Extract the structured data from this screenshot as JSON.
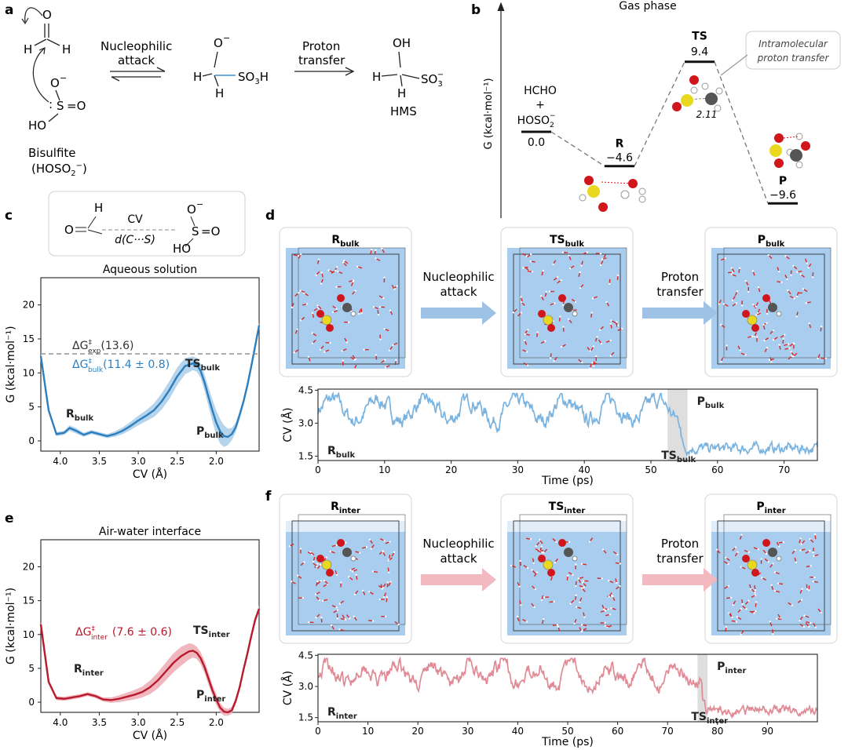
{
  "panels": {
    "a": "a",
    "b": "b",
    "c": "c",
    "d": "d",
    "e": "e",
    "f": "f"
  },
  "panel_a": {
    "step1": "Nucleophilic",
    "step1b": "attack",
    "step2": "Proton",
    "step2b": "transfer",
    "formaldehyde_H1": "H",
    "formaldehyde_H2": "H",
    "formaldehyde_O": "O",
    "bisulfite_label": "Bisulfite",
    "bisulfite_formula": "(HOSO",
    "bisulfite_formula_sub": "2",
    "bisulfite_formula_sup": "−",
    "bisulfite_formula_end": ")",
    "b_O": "O",
    "b_charge": "−",
    "b_S": "S",
    "b_eq": "=O",
    "b_HO": "HO",
    "int_O": "O",
    "int_charge": "−",
    "int_H1": "H",
    "int_H2": "H",
    "int_SO3H": "SO",
    "int_SO3H_sub": "3",
    "int_SO3H_end": "H",
    "hms_OH": "OH",
    "hms_H1": "H",
    "hms_H2": "H",
    "hms_SO3": "SO",
    "hms_SO3_sub": "3",
    "hms_SO3_sup": "−",
    "hms_label": "HMS"
  },
  "panel_b": {
    "title": "Gas phase",
    "ylabel": "G (kcal·mol⁻¹)",
    "states": [
      {
        "name": "HCHO",
        "name2": "+",
        "name3": "HOSO",
        "name3_sub": "2",
        "name3_sup": "−",
        "value": "0.0",
        "y": 0.0
      },
      {
        "name": "R",
        "value": "−4.6",
        "y": -4.6
      },
      {
        "name": "TS",
        "value": "9.4",
        "y": 9.4
      },
      {
        "name": "P",
        "value": "−9.6",
        "y": -9.6
      }
    ],
    "ts_distance": "2.11",
    "annotation": "Intramolecular",
    "annotation2": "proton transfer"
  },
  "panel_c": {
    "scheme_cv": "CV",
    "scheme_d": "d(C···S)",
    "scheme_H": "H",
    "scheme_O": "O",
    "scheme_Om": "O",
    "scheme_m": "−",
    "scheme_S": "S",
    "scheme_eqO": "=O",
    "scheme_HO": "HO"
  },
  "chart_data": [
    {
      "id": "c",
      "type": "line",
      "title": "Aqueous solution",
      "xlabel": "CV (Å)",
      "ylabel": "G (kcal·mol⁻¹)",
      "xlim": [
        4.25,
        1.45
      ],
      "ylim": [
        -1.5,
        24
      ],
      "xticks": [
        "4.0",
        "3.5",
        "3.0",
        "2.5",
        "2.0"
      ],
      "yticks": [
        "0",
        "5",
        "10",
        "15",
        "20"
      ],
      "x": [
        4.25,
        4.15,
        4.05,
        3.95,
        3.88,
        3.8,
        3.7,
        3.6,
        3.5,
        3.4,
        3.3,
        3.2,
        3.1,
        3.0,
        2.9,
        2.8,
        2.7,
        2.6,
        2.5,
        2.4,
        2.3,
        2.25,
        2.2,
        2.15,
        2.1,
        2.05,
        2.0,
        1.95,
        1.9,
        1.85,
        1.8,
        1.75,
        1.7,
        1.65,
        1.6,
        1.55,
        1.5,
        1.45
      ],
      "y": [
        12.5,
        4.5,
        1.0,
        1.2,
        1.9,
        1.5,
        0.9,
        1.3,
        1.0,
        0.7,
        1.0,
        1.5,
        2.2,
        3.0,
        3.7,
        4.5,
        5.8,
        7.5,
        9.5,
        11.0,
        11.4,
        11.2,
        10.3,
        8.6,
        6.5,
        4.5,
        2.7,
        1.4,
        0.7,
        0.6,
        1.0,
        2.0,
        3.8,
        5.8,
        8.2,
        11.0,
        14.0,
        17.0
      ],
      "band": [
        0.5,
        0.3,
        0.3,
        0.3,
        0.4,
        0.4,
        0.3,
        0.3,
        0.3,
        0.3,
        0.4,
        0.5,
        0.6,
        0.7,
        0.8,
        1.0,
        1.2,
        1.3,
        1.3,
        1.2,
        1.0,
        1.0,
        1.0,
        1.2,
        1.4,
        1.6,
        1.8,
        1.8,
        1.6,
        1.2,
        0.9,
        0.7,
        0.6,
        0.5,
        0.5,
        0.5,
        0.5,
        0.5
      ],
      "color": "#2c7fbf",
      "band_color": "#a9cde8",
      "ref_line": 12.8,
      "annotations": {
        "exp": "ΔG",
        "exp_sup": "‡",
        "exp_sub": "exp",
        "exp_val": "(13.6)",
        "bulk": "ΔG",
        "bulk_sup": "‡",
        "bulk_sub": "bulk",
        "bulk_val": "(11.4 ± 0.8)",
        "R": "R",
        "R_sub": "bulk",
        "TS": "TS",
        "TS_sub": "bulk",
        "P": "P",
        "P_sub": "bulk"
      }
    },
    {
      "id": "d_trace",
      "type": "line",
      "xlabel": "Time (ps)",
      "ylabel": "CV (Å)",
      "xlim": [
        0,
        75
      ],
      "ylim": [
        1.3,
        4.55
      ],
      "xticks": [
        "0",
        "10",
        "20",
        "30",
        "40",
        "50",
        "60",
        "70"
      ],
      "yticks": [
        "1.5",
        "3.0",
        "4.5"
      ],
      "color": "#7ab3df",
      "shade": [
        52.5,
        55.5
      ],
      "labels": {
        "R": "R",
        "R_sub": "bulk",
        "P": "P",
        "P_sub": "bulk",
        "TS": "TS",
        "TS_sub": "bulk"
      },
      "seed": 7,
      "transition": 54.5
    },
    {
      "id": "e",
      "type": "line",
      "title": "Air-water interface",
      "xlabel": "CV (Å)",
      "ylabel": "G (kcal·mol⁻¹)",
      "xlim": [
        4.25,
        1.45
      ],
      "ylim": [
        -1.5,
        24
      ],
      "xticks": [
        "4.0",
        "3.5",
        "3.0",
        "2.5",
        "2.0"
      ],
      "yticks": [
        "0",
        "5",
        "10",
        "15",
        "20"
      ],
      "x": [
        4.25,
        4.15,
        4.05,
        3.95,
        3.85,
        3.75,
        3.65,
        3.55,
        3.45,
        3.35,
        3.25,
        3.15,
        3.05,
        2.95,
        2.85,
        2.75,
        2.65,
        2.55,
        2.45,
        2.35,
        2.3,
        2.25,
        2.2,
        2.15,
        2.1,
        2.05,
        2.0,
        1.95,
        1.9,
        1.85,
        1.8,
        1.75,
        1.7,
        1.65,
        1.6,
        1.55,
        1.5,
        1.45
      ],
      "y": [
        11.5,
        3.0,
        0.6,
        0.5,
        0.7,
        0.9,
        1.2,
        0.9,
        0.4,
        0.3,
        0.5,
        0.8,
        1.1,
        1.5,
        2.2,
        3.2,
        4.5,
        5.8,
        6.8,
        7.5,
        7.6,
        7.3,
        6.5,
        5.2,
        3.5,
        1.8,
        0.4,
        -0.8,
        -1.4,
        -1.5,
        -1.2,
        0.2,
        2.2,
        4.8,
        7.2,
        9.8,
        12.2,
        13.8
      ],
      "band": [
        0.4,
        0.3,
        0.3,
        0.3,
        0.3,
        0.3,
        0.3,
        0.3,
        0.3,
        0.4,
        0.5,
        0.6,
        0.7,
        0.8,
        1.0,
        1.2,
        1.3,
        1.4,
        1.4,
        1.2,
        1.0,
        0.9,
        0.9,
        0.9,
        0.9,
        0.8,
        0.8,
        0.7,
        0.6,
        0.5,
        0.5,
        0.5,
        0.5,
        0.5,
        0.5,
        0.5,
        0.5,
        0.5
      ],
      "color": "#b9192c",
      "band_color": "#eeaab3",
      "annotations": {
        "inter": "ΔG",
        "inter_sup": "‡",
        "inter_sub": "inter",
        "inter_val": "(7.6 ± 0.6)",
        "R": "R",
        "R_sub": "inter",
        "TS": "TS",
        "TS_sub": "inter",
        "P": "P",
        "P_sub": "inter"
      }
    },
    {
      "id": "f_trace",
      "type": "line",
      "xlabel": "Time (ps)",
      "ylabel": "CV (Å)",
      "xlim": [
        0,
        100
      ],
      "ylim": [
        1.3,
        4.55
      ],
      "xticks": [
        "0",
        "10",
        "20",
        "30",
        "40",
        "50",
        "60",
        "70",
        "80",
        "90"
      ],
      "yticks": [
        "1.5",
        "3.0",
        "4.5"
      ],
      "color": "#e08a95",
      "shade": [
        76,
        78
      ],
      "labels": {
        "R": "R",
        "R_sub": "inter",
        "P": "P",
        "P_sub": "inter",
        "TS": "TS",
        "TS_sub": "inter"
      },
      "seed": 19,
      "transition": 77
    }
  ],
  "panel_d": {
    "states": [
      {
        "main": "R",
        "sub": "bulk"
      },
      {
        "main": "TS",
        "sub": "bulk"
      },
      {
        "main": "P",
        "sub": "bulk"
      }
    ],
    "arrow1": "Nucleophilic",
    "arrow1b": "attack",
    "arrow2": "Proton",
    "arrow2b": "transfer",
    "water_color": "#a8cdee",
    "arrow_color": "#9ec2e6"
  },
  "panel_f": {
    "states": [
      {
        "main": "R",
        "sub": "inter"
      },
      {
        "main": "TS",
        "sub": "inter"
      },
      {
        "main": "P",
        "sub": "inter"
      }
    ],
    "arrow1": "Nucleophilic",
    "arrow1b": "attack",
    "arrow2": "Proton",
    "arrow2b": "transfer",
    "water_color": "#a8cdee",
    "arrow_color": "#f2b9c0"
  }
}
